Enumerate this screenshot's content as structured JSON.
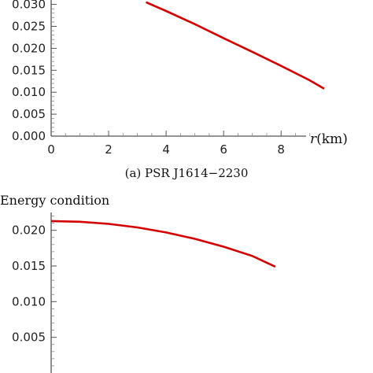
{
  "chart_data": [
    {
      "type": "line",
      "caption": "(a)   PSR J1614−2230",
      "xlabel_var": "r",
      "xlabel_unit": "(km)",
      "xlim": [
        0,
        9.5
      ],
      "ylim": [
        0,
        0.031
      ],
      "x_ticks": [
        "0",
        "2",
        "4",
        "6",
        "8"
      ],
      "x_tick_values": [
        0,
        2,
        4,
        6,
        8
      ],
      "y_ticks": [
        "0.000",
        "0.005",
        "0.010",
        "0.015",
        "0.020",
        "0.025",
        "0.030"
      ],
      "y_tick_values": [
        0,
        0.005,
        0.01,
        0.015,
        0.02,
        0.025,
        0.03
      ],
      "series": [
        {
          "color": "#d40000",
          "x": [
            3.3,
            4.0,
            5.0,
            6.0,
            7.0,
            8.0,
            9.0,
            9.5
          ],
          "y": [
            0.0305,
            0.0285,
            0.0255,
            0.0223,
            0.0192,
            0.016,
            0.0127,
            0.0108
          ]
        }
      ]
    },
    {
      "type": "line",
      "title": "Energy condition",
      "xlim": [
        0,
        9.5
      ],
      "ylim": [
        0,
        0.0225
      ],
      "y_ticks": [
        "0.005",
        "0.010",
        "0.015",
        "0.020"
      ],
      "y_tick_values": [
        0.005,
        0.01,
        0.015,
        0.02
      ],
      "series": [
        {
          "color": "#d40000",
          "x": [
            0,
            1,
            2,
            3,
            4,
            5,
            6,
            7,
            7.8
          ],
          "y": [
            0.0213,
            0.0212,
            0.0209,
            0.0204,
            0.0197,
            0.0188,
            0.0177,
            0.0164,
            0.0149
          ]
        }
      ]
    }
  ]
}
